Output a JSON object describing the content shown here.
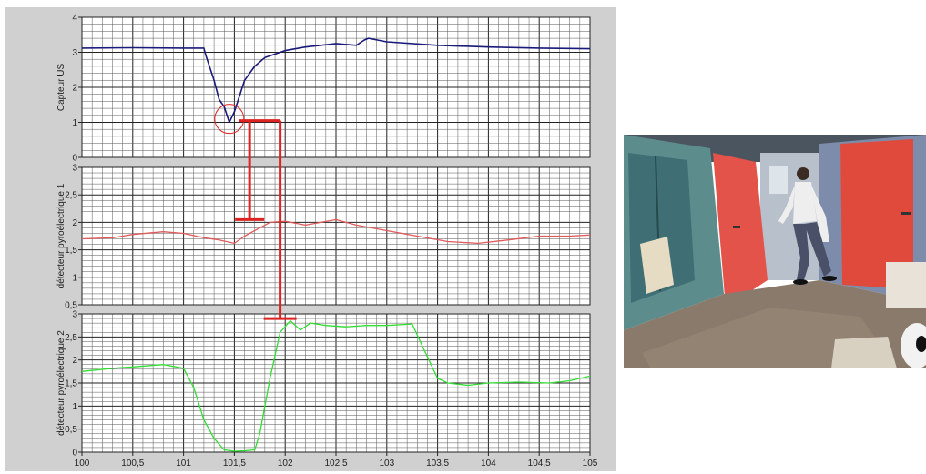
{
  "chart_data": [
    {
      "type": "line",
      "ylabel": "Capteur US",
      "ylim": [
        0,
        4
      ],
      "yticks": [
        "0",
        "1",
        "2",
        "3",
        "4"
      ],
      "grid": true,
      "series": [
        {
          "color": "#1a1a7a",
          "x": [
            100,
            100.5,
            101,
            101.2,
            101.22,
            101.3,
            101.35,
            101.4,
            101.45,
            101.5,
            101.55,
            101.6,
            101.7,
            101.8,
            102,
            102.2,
            102.5,
            102.7,
            102.78,
            102.82,
            103,
            103.5,
            104,
            104.5,
            105
          ],
          "y": [
            3.12,
            3.13,
            3.12,
            3.12,
            2.9,
            2.2,
            1.65,
            1.45,
            1.0,
            1.3,
            1.75,
            2.2,
            2.6,
            2.85,
            3.05,
            3.15,
            3.25,
            3.2,
            3.35,
            3.4,
            3.3,
            3.2,
            3.15,
            3.12,
            3.1
          ]
        }
      ]
    },
    {
      "type": "line",
      "ylabel": "détecteur pyroélectrique 1",
      "ylim": [
        0.5,
        3
      ],
      "yticks": [
        "0,5",
        "1",
        "1,5",
        "2",
        "2,5",
        "3"
      ],
      "grid": true,
      "series": [
        {
          "color": "#e05a5a",
          "x": [
            100,
            100.3,
            100.5,
            100.8,
            101,
            101.2,
            101.35,
            101.5,
            101.6,
            101.75,
            101.85,
            102,
            102.2,
            102.5,
            102.7,
            103,
            103.3,
            103.6,
            103.9,
            104.2,
            104.5,
            104.8,
            105
          ],
          "y": [
            1.7,
            1.72,
            1.78,
            1.83,
            1.8,
            1.72,
            1.68,
            1.62,
            1.75,
            1.9,
            2.0,
            2.02,
            1.95,
            2.05,
            1.95,
            1.85,
            1.75,
            1.65,
            1.62,
            1.68,
            1.75,
            1.75,
            1.77
          ]
        }
      ]
    },
    {
      "type": "line",
      "ylabel": "détecteur pyroélectrique 2",
      "xlabel": "",
      "ylim": [
        0,
        3
      ],
      "yticks": [
        "0",
        "0,5",
        "1",
        "1,5",
        "2",
        "2,5",
        "3"
      ],
      "xticks": [
        "100",
        "100,5",
        "101",
        "101,5",
        "102",
        "102,5",
        "103",
        "103,5",
        "104",
        "104,5",
        "105"
      ],
      "xlim": [
        100,
        105
      ],
      "grid": true,
      "series": [
        {
          "color": "#33dd33",
          "x": [
            100,
            100.3,
            100.5,
            100.8,
            101,
            101.1,
            101.2,
            101.3,
            101.4,
            101.5,
            101.6,
            101.7,
            101.75,
            101.85,
            101.95,
            102.05,
            102.15,
            102.25,
            102.4,
            102.6,
            102.8,
            103,
            103.25,
            103.35,
            103.5,
            103.6,
            103.8,
            104,
            104.3,
            104.6,
            104.8,
            105
          ],
          "y": [
            1.75,
            1.82,
            1.85,
            1.9,
            1.82,
            1.4,
            0.7,
            0.3,
            0.05,
            0.02,
            0.03,
            0.05,
            0.4,
            1.6,
            2.6,
            2.85,
            2.65,
            2.8,
            2.75,
            2.72,
            2.75,
            2.75,
            2.78,
            2.3,
            1.6,
            1.5,
            1.45,
            1.5,
            1.52,
            1.5,
            1.55,
            1.65
          ]
        }
      ]
    }
  ],
  "annotations": {
    "color": "#dd2222",
    "circle": {
      "x": 101.45,
      "y": 1.1,
      "panel": 0
    },
    "marker_top_y_panel0": 1.05,
    "short_bar": {
      "x": 101.65,
      "bottom_y_panel1": 2.05
    },
    "long_bar": {
      "x": 101.95,
      "bottom_y_panel2": 2.9
    }
  },
  "photo": {
    "description_icon": "corridor-photo"
  }
}
